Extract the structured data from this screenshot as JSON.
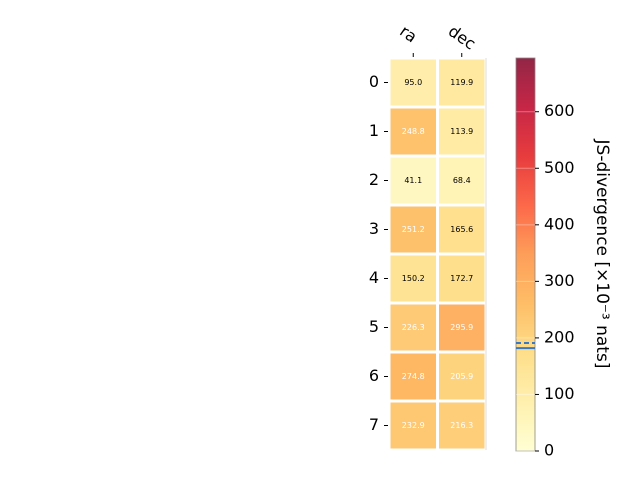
{
  "chart_data": {
    "type": "heatmap",
    "x_categories": [
      "ra",
      "dec"
    ],
    "y_categories": [
      "0",
      "1",
      "2",
      "3",
      "4",
      "5",
      "6",
      "7"
    ],
    "values": [
      [
        95.0,
        119.9
      ],
      [
        248.8,
        113.9
      ],
      [
        41.1,
        68.4
      ],
      [
        251.2,
        165.6
      ],
      [
        150.2,
        172.7
      ],
      [
        226.3,
        295.9
      ],
      [
        274.8,
        205.9
      ],
      [
        232.9,
        216.3
      ]
    ],
    "value_labels": [
      [
        "95.0",
        "119.9"
      ],
      [
        "248.8",
        "113.9"
      ],
      [
        "41.1",
        "68.4"
      ],
      [
        "251.2",
        "165.6"
      ],
      [
        "150.2",
        "172.7"
      ],
      [
        "226.3",
        "295.9"
      ],
      [
        "274.8",
        "205.9"
      ],
      [
        "232.9",
        "216.3"
      ]
    ],
    "colormap": [
      "#ffffcc",
      "#ffeda0",
      "#fed976",
      "#feb24c",
      "#fd8d3c",
      "#fc4e2a",
      "#e31a1c",
      "#bd0026",
      "#800026"
    ],
    "clim": [
      0,
      695
    ],
    "cticks": [
      0,
      100,
      200,
      300,
      400,
      500,
      600
    ],
    "colorbar_label": "JS-divergence [×10⁻³ nats]",
    "colorbar_markers": [
      {
        "value": 191,
        "style": "dashed",
        "color": "#3a78c2"
      },
      {
        "value": 182,
        "style": "solid",
        "color": "#3a78c2"
      }
    ]
  }
}
